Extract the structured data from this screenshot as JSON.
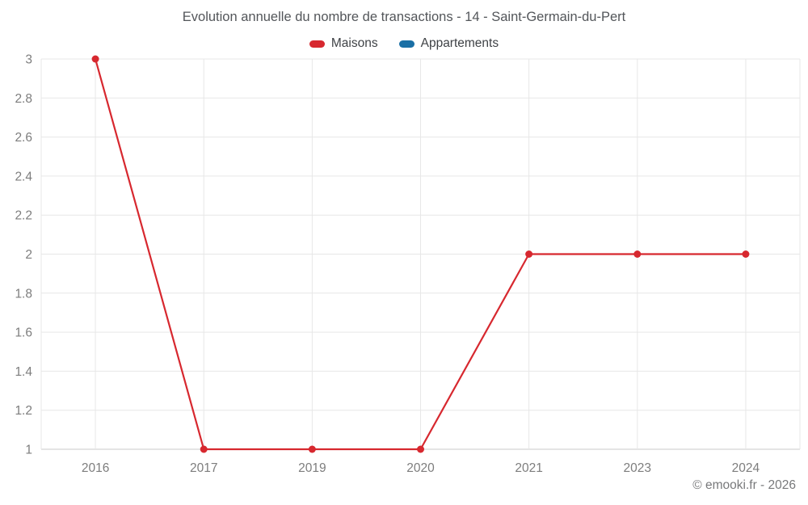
{
  "chart_data": {
    "type": "line",
    "title": "Evolution annuelle du nombre de transactions - 14 - Saint-Germain-du-Pert",
    "categories": [
      "2016",
      "2017",
      "2019",
      "2020",
      "2021",
      "2023",
      "2024"
    ],
    "series": [
      {
        "name": "Maisons",
        "color": "#d7282f",
        "values": [
          3,
          1,
          1,
          1,
          2,
          2,
          2
        ]
      },
      {
        "name": "Appartements",
        "color": "#1a6fa5",
        "values": []
      }
    ],
    "ylim": [
      1,
      3
    ],
    "ytick_step": 0.2,
    "ytick_labels": [
      "1",
      "1.2",
      "1.4",
      "1.6",
      "1.8",
      "2",
      "2.2",
      "2.4",
      "2.6",
      "2.8",
      "3"
    ],
    "grid": true,
    "legend_position": "top",
    "colors": {
      "gridline": "#e7e7e7",
      "axis_line": "#c9c9c9",
      "tick_label": "#7d7d7d"
    },
    "copyright": "© emooki.fr - 2026"
  }
}
